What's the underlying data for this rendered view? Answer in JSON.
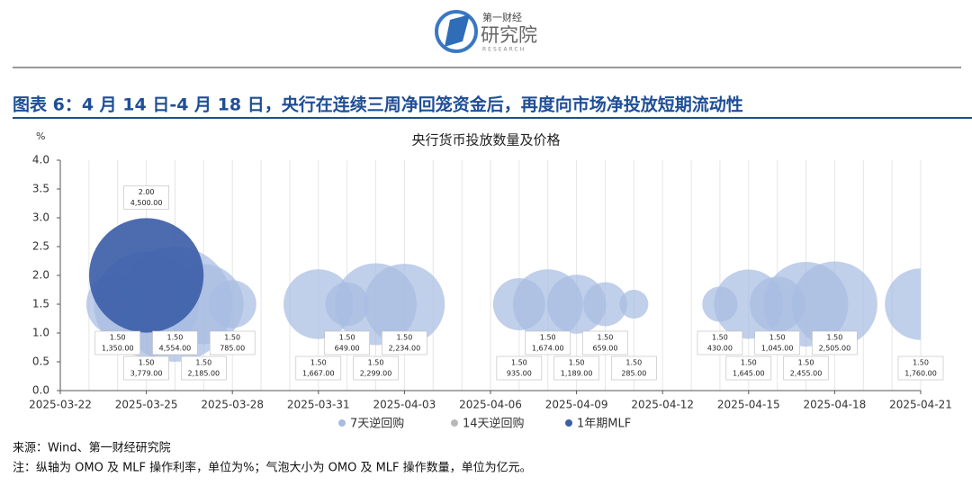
{
  "header": {
    "logo_top": "第一财经",
    "logo_main": "研究院",
    "logo_sub": "RESEARCH"
  },
  "figure_title": "图表 6：4 月 14 日-4 月 18 日，央行在连续三周净回笼资金后，再度向市场净投放短期流动性",
  "chart_data": {
    "type": "bubble",
    "title": "央行货币投放数量及价格",
    "y_unit": "%",
    "xlim": [
      "2025-03-22",
      "2025-04-21"
    ],
    "xticks": [
      "2025-03-22",
      "2025-03-25",
      "2025-03-28",
      "2025-03-31",
      "2025-04-03",
      "2025-04-06",
      "2025-04-09",
      "2025-04-12",
      "2025-04-15",
      "2025-04-18",
      "2025-04-21"
    ],
    "ylim": [
      0,
      4
    ],
    "yticks": [
      {
        "value": 0,
        "label": "0.0"
      },
      {
        "value": 0.5,
        "label": "0.5"
      },
      {
        "value": 1,
        "label": "1.0"
      },
      {
        "value": 1.5,
        "label": "1.5"
      },
      {
        "value": 2,
        "label": "2.0"
      },
      {
        "value": 2.5,
        "label": "2.5"
      },
      {
        "value": 3,
        "label": "3.0"
      },
      {
        "value": 3.5,
        "label": "3.5"
      },
      {
        "value": 4,
        "label": "4.0"
      }
    ],
    "grid": true,
    "series": [
      {
        "name": "7天逆回购",
        "color": "#a8bce2",
        "x": [
          "2025-03-24",
          "2025-03-25",
          "2025-03-26",
          "2025-03-27",
          "2025-03-28",
          "2025-03-31",
          "2025-04-01",
          "2025-04-02",
          "2025-04-03",
          "2025-04-07",
          "2025-04-08",
          "2025-04-09",
          "2025-04-10",
          "2025-04-11",
          "2025-04-14",
          "2025-04-15",
          "2025-04-16",
          "2025-04-17",
          "2025-04-18",
          "2025-04-21"
        ],
        "values": [
          1.5,
          1.5,
          1.5,
          1.5,
          1.5,
          1.5,
          1.5,
          1.5,
          1.5,
          1.5,
          1.5,
          1.5,
          1.5,
          1.5,
          1.5,
          1.5,
          1.5,
          1.5,
          1.5,
          1.5
        ],
        "value_labels": [
          "1.50",
          "1.50",
          "1.50",
          "1.50",
          "1.50",
          "1.50",
          "1.50",
          "1.50",
          "1.50",
          "1.50",
          "1.50",
          "1.50",
          "1.50",
          "1.50",
          "1.50",
          "1.50",
          "1.50",
          "1.50",
          "1.50",
          "1.50"
        ],
        "sizes": [
          1350,
          3779,
          4554,
          2185,
          785,
          1667,
          649,
          2299,
          2234,
          935,
          1674,
          1189,
          659,
          285,
          430,
          1645,
          1045,
          2455,
          2505,
          1760
        ],
        "size_labels": [
          "1,350.00",
          "3,779.00",
          "4,554.00",
          "2,185.00",
          "785.00",
          "1,667.00",
          "649.00",
          "2,299.00",
          "2,234.00",
          "935.00",
          "1,674.00",
          "1,189.00",
          "659.00",
          "285.00",
          "430.00",
          "1,645.00",
          "1,045.00",
          "2,455.00",
          "2,505.00",
          "1,760.00"
        ]
      },
      {
        "name": "14天逆回购",
        "color": "#b8b8b8",
        "x": [],
        "values": [],
        "value_labels": [],
        "sizes": [],
        "size_labels": []
      },
      {
        "name": "1年期MLF",
        "color": "#3d5fa8",
        "x": [
          "2025-03-25"
        ],
        "values": [
          2
        ],
        "value_labels": [
          "2.00"
        ],
        "sizes": [
          4500
        ],
        "size_labels": [
          "4,500.00"
        ]
      }
    ]
  },
  "source": "来源：Wind、第一财经研究院",
  "note": "注：纵轴为 OMO 及 MLF 操作利率，单位为%；气泡大小为 OMO 及 MLF 操作数量，单位为亿元。"
}
